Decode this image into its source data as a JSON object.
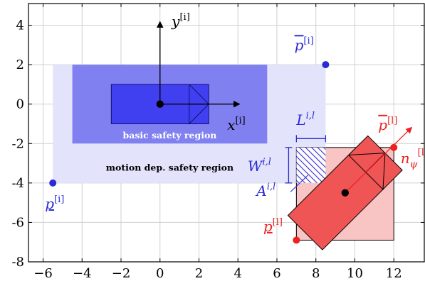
{
  "chart_data": {
    "type": "diagram",
    "xlim": [
      -6.75,
      13.6
    ],
    "ylim": [
      -8,
      5.1
    ],
    "x_ticks": [
      -6,
      -4,
      -2,
      0,
      2,
      4,
      6,
      8,
      10,
      12
    ],
    "x_tick_labels": [
      "−6",
      "−4",
      "−2",
      "0",
      "2",
      "4",
      "6",
      "8",
      "10",
      "12"
    ],
    "y_ticks": [
      4,
      2,
      0,
      -2,
      -4,
      -6,
      -8
    ],
    "y_tick_labels": [
      "4",
      "2",
      "0",
      "-2",
      "-4",
      "-6",
      "-8"
    ],
    "grid": true,
    "colors": {
      "blue": "#2b2bd6",
      "motion_region_fill": "#e3e3fb",
      "basic_region_fill": "#8080f0",
      "vehicle_i_fill": "#4040f0",
      "red": "#ee2020",
      "red_box_fill": "#f8c4c4",
      "vehicle_l_fill": "#f05555"
    },
    "regions": [
      {
        "name": "motion dep. safety region",
        "x": [
          -5.5,
          8.5
        ],
        "y": [
          -4,
          2
        ]
      },
      {
        "name": "basic safety region",
        "x": [
          -4.5,
          5.5
        ],
        "y": [
          -2,
          2
        ]
      }
    ],
    "vehicle_i": {
      "rear_x": -2.5,
      "front_x": 2.5,
      "width_y": [
        -1,
        1
      ],
      "origin": [
        0,
        0
      ]
    },
    "vehicle_l": {
      "center": [
        9.5,
        -4.5
      ],
      "heading_deg": 45,
      "bbox_x": [
        7,
        12
      ],
      "bbox_y": [
        -6.9,
        -2.2
      ]
    },
    "overlap_hatch": {
      "x": [
        7,
        8.5
      ],
      "y": [
        -4,
        -2.2
      ]
    },
    "points": {
      "p_upper_i": [
        8.5,
        2
      ],
      "p_lower_i": [
        -5.5,
        -4
      ],
      "p_upper_l": [
        12,
        -2.2
      ],
      "p_lower_l": [
        7,
        -6.9
      ]
    },
    "labels": {
      "x_axis_i": "x",
      "y_axis_i": "y",
      "sup_i": "[i]",
      "sup_l": "[l]",
      "p": "p",
      "L": "L",
      "W": "W",
      "A": "A",
      "sup_il": "i,l",
      "n": "n",
      "psi": "ψ",
      "motion_region": "motion dep. safety region",
      "basic_region": "basic safety region"
    }
  }
}
